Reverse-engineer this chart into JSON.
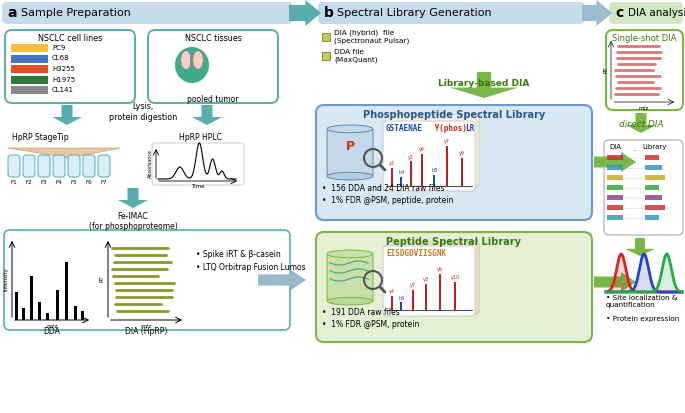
{
  "title_a": "Sample Preparation",
  "title_b": "Spectral Library Generation",
  "title_c": "DIA analysis",
  "bg_ab": "#c5dce8",
  "bg_c": "#d2e8c4",
  "teal": "#5aadad",
  "blue_arrow": "#9bbccc",
  "green": "#7ab648",
  "cell_line_names": [
    "PC9",
    "CL68",
    "H3255",
    "H1975",
    "CL141"
  ],
  "cell_line_colors": [
    "#f5c040",
    "#4472c4",
    "#e05020",
    "#2e7a3e",
    "#888888"
  ],
  "phos_lib_title": "Phosphopeptide Spectral Library",
  "phos_lib_bg": "#d8e8f4",
  "phos_lib_border": "#6a9ac8",
  "phos_seq_blue": "GSTAENAE",
  "phos_seq_red": " Y(phos) ",
  "phos_seq_blue2": "LR",
  "phos_bullets": [
    "156 DDA and 24 DIA raw files",
    "1% FDR @PSM, peptide, protein"
  ],
  "pep_lib_title": "Peptide Spectral Library",
  "pep_lib_bg": "#e4efd4",
  "pep_lib_border": "#7ab648",
  "pep_sequence": "EISDGDVIISGNK",
  "pep_bullets": [
    "191 DDA raw files",
    "1% FDR @PSM, protein"
  ],
  "legend_dia": "DIA (hybrid)  file\n(Spectronaut Pulsar)",
  "legend_dda": "DDA file\n(MaxQuant)",
  "lib_based_dia": "Library-based DIA",
  "single_shot_dia": "Single-shot DIA",
  "direct_dia": "direct DIA",
  "lysis_text": "Lysis,\nprotein digestion",
  "hprp_stagetip": "HpRP StageTip",
  "hprp_hplc": "HpRP HPLC",
  "fe_imac": "Fe-IMAC\n(for phosphoproteome)",
  "spike_text": "Spike iRT & β-casein",
  "lumos_text": "LTQ Orbitrap Fusion Lumos",
  "dda_label": "DDA",
  "dia_label": "DIA (HpRP)",
  "site_loc": "Site localization &\nquantification",
  "prot_exp": "Protein expression",
  "pooled_tumor": "pooled tumor",
  "nsclc_cell_lines": "NSCLC cell lines",
  "nsclc_tissues": "NSCLC tissues",
  "phos_ions": [
    "y3",
    "b4",
    "y5",
    "y6",
    "b8",
    "y7",
    "y9"
  ],
  "phos_ion_x": [
    5,
    14,
    24,
    35,
    47,
    60,
    75
  ],
  "phos_ion_h": [
    18,
    9,
    25,
    32,
    11,
    40,
    28
  ],
  "phos_ion_colors": [
    "#bb2222",
    "#2244bb",
    "#bb2222",
    "#bb2222",
    "#2244bb",
    "#bb2222",
    "#bb2222"
  ],
  "pep_ions": [
    "y4",
    "b5",
    "y7",
    "y8",
    "y9",
    "y10"
  ],
  "pep_ion_x": [
    5,
    14,
    26,
    39,
    53,
    68
  ],
  "pep_ion_h": [
    14,
    8,
    20,
    26,
    36,
    28
  ],
  "pep_ion_colors": [
    "#bb2222",
    "#2244bb",
    "#bb2222",
    "#bb2222",
    "#bb2222",
    "#bb2222"
  ],
  "match_colors": [
    "#cc3333",
    "#3399bb",
    "#ccaa22",
    "#33aa33",
    "#884488",
    "#cc3333",
    "#3399bb"
  ]
}
